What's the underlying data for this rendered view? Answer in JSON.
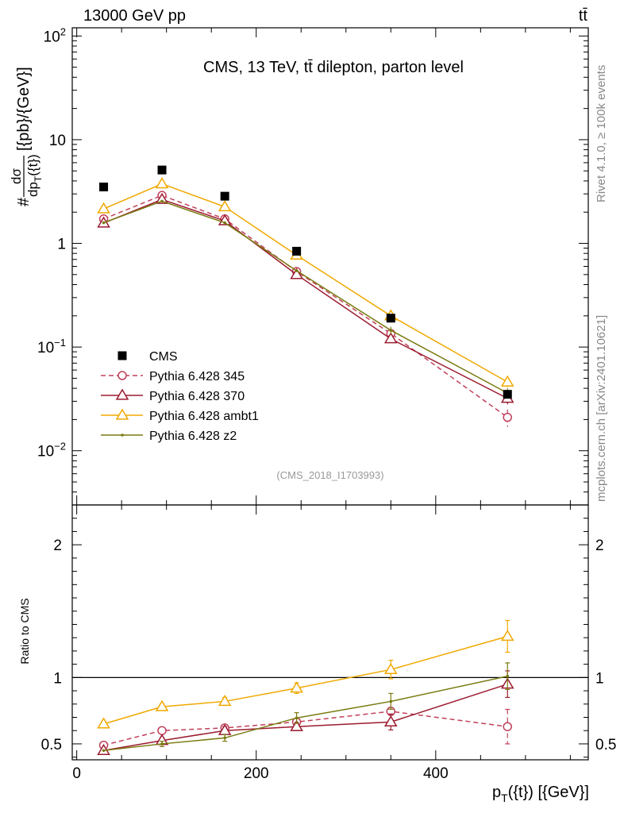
{
  "header": {
    "beam": "13000 GeV pp",
    "process": "tt̄"
  },
  "side_labels": {
    "rivet": "Rivet 4.1.0, ≥ 100k events",
    "mcplots": "mcplots.cern.ch [arXiv:2401.10621]"
  },
  "chart_data": {
    "type": "scatter",
    "title": "CMS, 13 TeV, tt̄ dilepton, parton level",
    "analysis_id": "(CMS_2018_I1703993)",
    "ylabel_prefix": "#",
    "ylabel_main": "dσ",
    "ylabel_den": "dp",
    "ylabel_den_sub": "T",
    "ylabel_den_suffix": "({t})",
    "ylabel_unit": "[{pb}/{GeV}]",
    "xlabel_main": "p",
    "xlabel_sub": "T",
    "xlabel_rest": "({t}) [{GeV}]",
    "ratio_ylabel": "Ratio to CMS",
    "xlim": [
      -5,
      570
    ],
    "ylim_log": [
      0.003,
      120
    ],
    "ratio_ylim": [
      0.38,
      2.3
    ],
    "x_ticks": [
      0,
      200,
      400
    ],
    "x_tick_labels": [
      "0",
      "200",
      "400"
    ],
    "y_ticks": [
      0.01,
      0.1,
      1,
      10,
      100
    ],
    "y_tick_labels_base": [
      "10",
      "10",
      "1",
      "10",
      "10"
    ],
    "y_tick_labels_exp": [
      "−2",
      "−1",
      "",
      "",
      "2"
    ],
    "ratio_ticks": [
      0.5,
      1,
      2
    ],
    "ratio_tick_labels": [
      "0.5",
      "1",
      "2"
    ],
    "x": [
      30,
      95,
      165,
      245,
      350,
      480
    ],
    "data": {
      "name": "CMS",
      "color": "#000000",
      "values": [
        3.5,
        5.1,
        2.85,
        0.84,
        0.19,
        0.035
      ]
    },
    "series": [
      {
        "name": "Pythia 6.428 345",
        "color": "#c0405a",
        "marker": "circle",
        "dash": true,
        "values": [
          1.72,
          2.9,
          1.72,
          0.535,
          0.135,
          0.021
        ],
        "err": [
          0,
          0,
          0,
          0,
          0.01,
          0.004
        ],
        "ratio": [
          0.49,
          0.6,
          0.62,
          0.665,
          0.745,
          0.63
        ],
        "ratio_err": [
          0,
          0,
          0,
          0,
          0.03,
          0.13
        ]
      },
      {
        "name": "Pythia 6.428 370",
        "color": "#9b1b30",
        "marker": "triangle",
        "dash": false,
        "values": [
          1.57,
          2.65,
          1.65,
          0.5,
          0.12,
          0.032
        ],
        "err": [
          0,
          0,
          0,
          0,
          0.01,
          0.004
        ],
        "ratio": [
          0.45,
          0.525,
          0.6,
          0.63,
          0.665,
          0.95
        ],
        "ratio_err": [
          0,
          0.02,
          0.03,
          0.03,
          0.06,
          0.1
        ]
      },
      {
        "name": "Pythia 6.428 ambt1",
        "color": "#f0a800",
        "marker": "triangle",
        "dash": false,
        "values": [
          2.15,
          3.75,
          2.25,
          0.77,
          0.2,
          0.046
        ],
        "err": [
          0,
          0,
          0,
          0,
          0.01,
          0.005
        ],
        "ratio": [
          0.65,
          0.78,
          0.82,
          0.92,
          1.06,
          1.31
        ],
        "ratio_err": [
          0.02,
          0.02,
          0.03,
          0.04,
          0.07,
          0.12
        ]
      },
      {
        "name": "Pythia 6.428 z2",
        "color": "#7a7a10",
        "marker": "dot",
        "dash": false,
        "values": [
          1.58,
          2.55,
          1.58,
          0.545,
          0.145,
          0.036
        ],
        "err": [
          0,
          0,
          0,
          0,
          0.012,
          0.004
        ],
        "ratio": [
          0.45,
          0.5,
          0.545,
          0.695,
          0.82,
          1.01
        ],
        "ratio_err": [
          0,
          0.02,
          0.025,
          0.04,
          0.06,
          0.1
        ]
      }
    ]
  }
}
